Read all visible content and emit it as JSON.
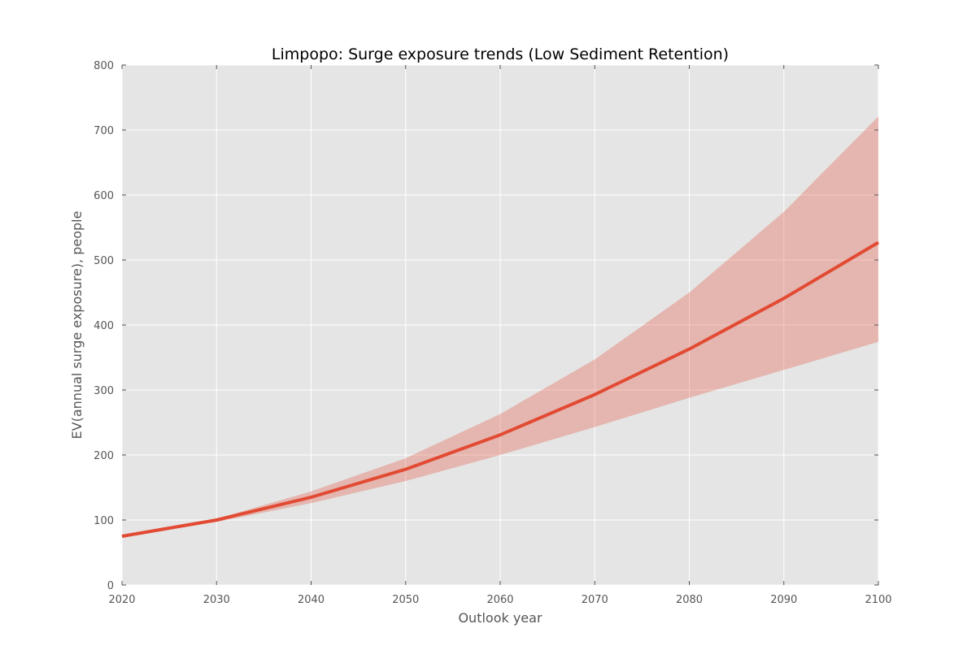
{
  "chart_data": {
    "type": "line",
    "title": "Limpopo: Surge exposure trends (Low Sediment Retention)",
    "xlabel": "Outlook year",
    "ylabel": "EV(annual surge exposure), people",
    "xlim": [
      2020,
      2100
    ],
    "ylim": [
      0,
      800
    ],
    "xticks": [
      2020,
      2030,
      2040,
      2050,
      2060,
      2070,
      2080,
      2090,
      2100
    ],
    "yticks": [
      0,
      100,
      200,
      300,
      400,
      500,
      600,
      700,
      800
    ],
    "grid": true,
    "x": [
      2020,
      2030,
      2040,
      2050,
      2060,
      2070,
      2080,
      2090,
      2100
    ],
    "series": [
      {
        "values": [
          75,
          100,
          135,
          178,
          231,
          293,
          363,
          441,
          527
        ],
        "band_lower": [
          75,
          97,
          126,
          160,
          200,
          243,
          288,
          331,
          374
        ],
        "band_upper": [
          75,
          102,
          144,
          195,
          263,
          347,
          450,
          574,
          721
        ]
      }
    ],
    "colors": {
      "plot_background": "#e5e5e5",
      "grid": "#ffffff",
      "line": "#e24a33",
      "band": "#e24a33"
    }
  }
}
